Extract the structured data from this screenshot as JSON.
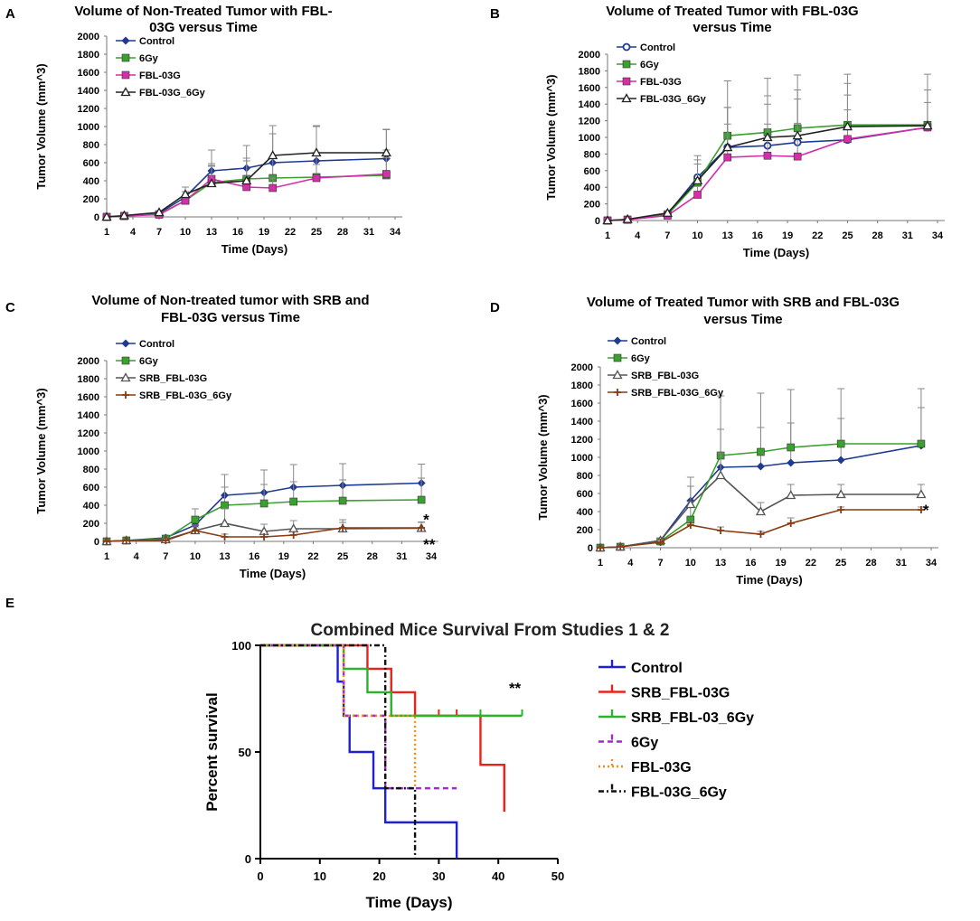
{
  "figure": {
    "panel_labels": [
      "A",
      "B",
      "C",
      "D",
      "E"
    ]
  },
  "chart_data": [
    {
      "id": "A",
      "type": "line",
      "title_lines": [
        "Volume of Non-Treated Tumor with FBL-",
        "03G versus Time"
      ],
      "xlabel": "Time (Days)",
      "ylabel": "Tumor Volume (mm^3)",
      "categories": [
        "1",
        "4",
        "7",
        "10",
        "13",
        "16",
        "19",
        "22",
        "25",
        "28",
        "31",
        "34"
      ],
      "ylim": [
        0,
        2000
      ],
      "yticks": [
        0,
        200,
        400,
        600,
        800,
        1000,
        1200,
        1400,
        1600,
        1800,
        2000
      ],
      "series": [
        {
          "name": "Control",
          "color": "#1f3a93",
          "marker": "diamond",
          "x": [
            1,
            3,
            7,
            10,
            13,
            17,
            20,
            25,
            33
          ],
          "values": [
            0,
            10,
            40,
            220,
            510,
            540,
            600,
            620,
            645
          ],
          "err": [
            0,
            0,
            20,
            60,
            230,
            250,
            320,
            380,
            320
          ]
        },
        {
          "name": "6Gy",
          "color": "#3aa02f",
          "marker": "square",
          "x": [
            1,
            3,
            7,
            10,
            13,
            17,
            20,
            25,
            33
          ],
          "values": [
            0,
            10,
            30,
            180,
            380,
            420,
            430,
            440,
            460
          ],
          "err": [
            0,
            0,
            15,
            50,
            180,
            200,
            220,
            250,
            280
          ]
        },
        {
          "name": "FBL-03G",
          "color": "#d42fa8",
          "marker": "square",
          "x": [
            1,
            3,
            7,
            10,
            13,
            17,
            20,
            25,
            33
          ],
          "values": [
            0,
            10,
            25,
            180,
            420,
            330,
            320,
            430,
            475
          ],
          "err": [
            0,
            0,
            10,
            40,
            150,
            120,
            110,
            150,
            180
          ]
        },
        {
          "name": "FBL-03G_6Gy",
          "color": "#222222",
          "marker": "triangle",
          "x": [
            1,
            3,
            7,
            10,
            13,
            17,
            20,
            25,
            33
          ],
          "values": [
            0,
            15,
            50,
            250,
            370,
            400,
            680,
            710,
            710
          ],
          "err": [
            0,
            0,
            20,
            80,
            220,
            250,
            330,
            300,
            260
          ]
        }
      ],
      "annotations": []
    },
    {
      "id": "B",
      "type": "line",
      "title_lines": [
        "Volume of Treated Tumor with FBL-03G",
        "versus Time"
      ],
      "xlabel": "Time (Days)",
      "ylabel": "Tumor Volume (mm^3)",
      "categories": [
        "1",
        "4",
        "7",
        "10",
        "13",
        "16",
        "19",
        "22",
        "25",
        "28",
        "31",
        "34"
      ],
      "ylim": [
        0,
        2000
      ],
      "yticks": [
        0,
        200,
        400,
        600,
        800,
        1000,
        1200,
        1400,
        1600,
        1800,
        2000
      ],
      "series": [
        {
          "name": "Control",
          "color": "#1f3a93",
          "marker": "circle",
          "x": [
            1,
            3,
            7,
            10,
            13,
            17,
            20,
            25,
            33
          ],
          "values": [
            0,
            10,
            80,
            520,
            880,
            900,
            940,
            970,
            1120
          ],
          "err": [
            0,
            0,
            30,
            260,
            480,
            500,
            520,
            540,
            450
          ]
        },
        {
          "name": "6Gy",
          "color": "#3aa02f",
          "marker": "square",
          "x": [
            1,
            3,
            7,
            10,
            13,
            17,
            20,
            25,
            33
          ],
          "values": [
            0,
            10,
            70,
            460,
            1020,
            1060,
            1110,
            1150,
            1150
          ],
          "err": [
            0,
            0,
            25,
            220,
            660,
            650,
            640,
            610,
            610
          ]
        },
        {
          "name": "FBL-03G",
          "color": "#d42fa8",
          "marker": "square",
          "x": [
            1,
            3,
            7,
            10,
            13,
            17,
            20,
            25,
            33
          ],
          "values": [
            0,
            10,
            60,
            310,
            760,
            780,
            770,
            980,
            1120
          ],
          "err": [
            0,
            0,
            20,
            100,
            400,
            380,
            400,
            350,
            300
          ]
        },
        {
          "name": "FBL-03G_6Gy",
          "color": "#222222",
          "marker": "triangle",
          "x": [
            1,
            3,
            7,
            10,
            13,
            17,
            20,
            25,
            33
          ],
          "values": [
            0,
            15,
            90,
            480,
            880,
            1000,
            1020,
            1130,
            1140
          ],
          "err": [
            0,
            0,
            30,
            250,
            480,
            500,
            550,
            520,
            430
          ]
        }
      ],
      "annotations": []
    },
    {
      "id": "C",
      "type": "line",
      "title_lines": [
        "Volume of Non-treated tumor with  SRB and",
        "FBL-03G versus Time"
      ],
      "xlabel": "Time (Days)",
      "ylabel": "Tumor Volume (mm^3)",
      "categories": [
        "1",
        "4",
        "7",
        "10",
        "13",
        "16",
        "19",
        "22",
        "25",
        "28",
        "31",
        "34"
      ],
      "ylim": [
        0,
        2000
      ],
      "yticks": [
        0,
        200,
        400,
        600,
        800,
        1000,
        1200,
        1400,
        1600,
        1800,
        2000
      ],
      "series": [
        {
          "name": "Control",
          "color": "#1f3a93",
          "marker": "diamond",
          "x": [
            1,
            3,
            7,
            10,
            13,
            17,
            20,
            25,
            33
          ],
          "values": [
            0,
            10,
            40,
            180,
            510,
            540,
            600,
            620,
            645
          ],
          "err": [
            0,
            0,
            15,
            80,
            230,
            250,
            250,
            240,
            210
          ]
        },
        {
          "name": "6Gy",
          "color": "#3aa02f",
          "marker": "square",
          "x": [
            1,
            3,
            7,
            10,
            13,
            17,
            20,
            25,
            33
          ],
          "values": [
            0,
            10,
            30,
            240,
            400,
            420,
            440,
            450,
            460
          ],
          "err": [
            0,
            0,
            10,
            120,
            200,
            210,
            220,
            230,
            240
          ]
        },
        {
          "name": "SRB_FBL-03G",
          "color": "#555555",
          "marker": "triangle",
          "x": [
            1,
            3,
            7,
            10,
            13,
            17,
            20,
            25,
            33
          ],
          "values": [
            0,
            10,
            20,
            120,
            200,
            110,
            140,
            140,
            145
          ],
          "err": [
            0,
            0,
            10,
            60,
            160,
            80,
            90,
            100,
            70
          ]
        },
        {
          "name": "SRB_FBL-03G_6Gy",
          "color": "#8b3a0f",
          "marker": "plus",
          "x": [
            1,
            3,
            7,
            10,
            13,
            17,
            20,
            25,
            33
          ],
          "values": [
            0,
            10,
            10,
            120,
            50,
            50,
            70,
            150,
            150
          ],
          "err": [
            0,
            0,
            5,
            40,
            30,
            30,
            40,
            60,
            60
          ]
        }
      ],
      "annotations": [
        {
          "text": "*",
          "x": 33,
          "y": 245
        },
        {
          "text": "**",
          "x": 33,
          "y": -30
        }
      ]
    },
    {
      "id": "D",
      "type": "line",
      "title_lines": [
        "Volume of Treated Tumor with SRB and FBL-03G",
        "versus Time"
      ],
      "xlabel": "Time (Days)",
      "ylabel": "Tumor Volume (mm^3)",
      "categories": [
        "1",
        "4",
        "7",
        "10",
        "13",
        "16",
        "19",
        "22",
        "25",
        "28",
        "31",
        "34"
      ],
      "ylim": [
        0,
        2000
      ],
      "yticks": [
        0,
        200,
        400,
        600,
        800,
        1000,
        1200,
        1400,
        1600,
        1800,
        2000
      ],
      "series": [
        {
          "name": "Control",
          "color": "#1f3a93",
          "marker": "diamond",
          "x": [
            1,
            3,
            7,
            10,
            13,
            17,
            20,
            25,
            33
          ],
          "values": [
            0,
            10,
            80,
            520,
            890,
            900,
            940,
            970,
            1130
          ],
          "err": [
            0,
            0,
            30,
            260,
            420,
            430,
            440,
            460,
            420
          ]
        },
        {
          "name": "6Gy",
          "color": "#3aa02f",
          "marker": "square",
          "x": [
            1,
            3,
            7,
            10,
            13,
            17,
            20,
            25,
            33
          ],
          "values": [
            0,
            10,
            70,
            310,
            1020,
            1060,
            1110,
            1150,
            1150
          ],
          "err": [
            0,
            0,
            25,
            200,
            660,
            650,
            640,
            610,
            610
          ]
        },
        {
          "name": "SRB_FBL-03G",
          "color": "#555555",
          "marker": "triangle",
          "x": [
            1,
            3,
            7,
            10,
            13,
            17,
            20,
            25,
            33
          ],
          "values": [
            0,
            10,
            80,
            480,
            800,
            400,
            580,
            590,
            590
          ],
          "err": [
            0,
            0,
            30,
            200,
            250,
            100,
            120,
            110,
            110
          ]
        },
        {
          "name": "SRB_FBL-03G_6Gy",
          "color": "#8b3a0f",
          "marker": "plus",
          "x": [
            1,
            3,
            7,
            10,
            13,
            17,
            20,
            25,
            33
          ],
          "values": [
            0,
            10,
            60,
            250,
            190,
            150,
            270,
            420,
            420
          ],
          "err": [
            0,
            0,
            20,
            40,
            40,
            30,
            60,
            30,
            30
          ]
        }
      ],
      "annotations": [
        {
          "text": "*",
          "x": 33,
          "y": 420
        }
      ]
    },
    {
      "id": "E",
      "type": "line",
      "subtype": "kaplan-meier",
      "title": "Combined Mice Survival From Studies 1 & 2",
      "xlabel": "Time (Days)",
      "ylabel": "Percent survival",
      "xlim": [
        0,
        50
      ],
      "ylim": [
        0,
        100
      ],
      "xticks": [
        0,
        10,
        20,
        30,
        40,
        50
      ],
      "yticks": [
        0,
        50,
        100
      ],
      "series": [
        {
          "name": "Control",
          "color": "#1f1fd6",
          "dash": "",
          "steps": [
            [
              0,
              100
            ],
            [
              13,
              83
            ],
            [
              14,
              67
            ],
            [
              15,
              50
            ],
            [
              19,
              33
            ],
            [
              21,
              17
            ],
            [
              33,
              0
            ]
          ],
          "end": 33,
          "censor": []
        },
        {
          "name": "SRB_FBL-03G",
          "color": "#e8231c",
          "dash": "",
          "steps": [
            [
              0,
              100
            ],
            [
              18,
              89
            ],
            [
              22,
              78
            ],
            [
              26,
              67
            ],
            [
              37,
              44
            ],
            [
              41,
              22
            ]
          ],
          "end": 41,
          "censor": [
            18,
            30,
            33
          ]
        },
        {
          "name": "SRB_FBL-03_6Gy",
          "color": "#2bb32b",
          "dash": "",
          "steps": [
            [
              0,
              100
            ],
            [
              14,
              89
            ],
            [
              18,
              78
            ],
            [
              22,
              67
            ]
          ],
          "end": 44,
          "censor": [
            37,
            44
          ]
        },
        {
          "name": "6Gy",
          "color": "#a22bd0",
          "dash": "6,4",
          "steps": [
            [
              0,
              100
            ],
            [
              14,
              67
            ],
            [
              21,
              33
            ]
          ],
          "end": 33,
          "censor": []
        },
        {
          "name": "FBL-03G",
          "color": "#f08c1a",
          "dash": "2,3",
          "steps": [
            [
              0,
              100
            ],
            [
              14,
              67
            ],
            [
              26,
              33
            ]
          ],
          "end": 26,
          "censor": []
        },
        {
          "name": "FBL-03G_6Gy",
          "color": "#111111",
          "dash": "6,3,2,3",
          "steps": [
            [
              0,
              100
            ],
            [
              21,
              33
            ],
            [
              26,
              0
            ]
          ],
          "end": 26,
          "censor": []
        }
      ],
      "annotations": [
        {
          "text": "**",
          "x": 43,
          "y": 80
        }
      ]
    }
  ]
}
